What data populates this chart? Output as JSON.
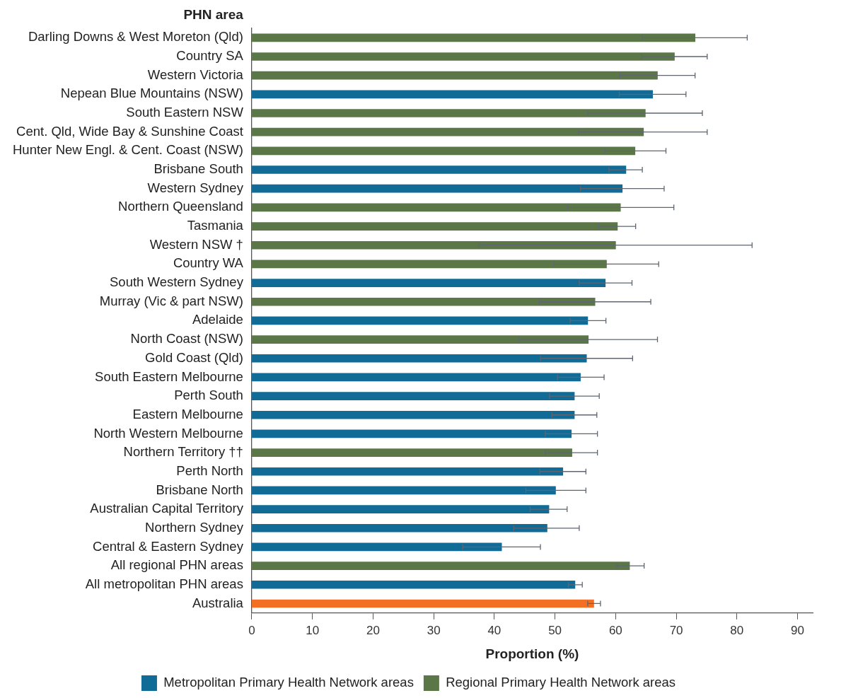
{
  "chart_data": {
    "type": "bar",
    "orientation": "horizontal",
    "ylabel": "PHN area",
    "xlabel": "Proportion (%)",
    "categories": [
      "Darling Downs & West Moreton (Qld)",
      "Country SA",
      "Western Victoria",
      "Nepean Blue Mountains (NSW)",
      "South Eastern NSW",
      "Cent. Qld, Wide Bay & Sunshine Coast",
      "Hunter New Engl. & Cent. Coast (NSW)",
      "Brisbane South",
      "Western Sydney",
      "Northern Queensland",
      "Tasmania",
      "Western NSW †",
      "Country WA",
      "South Western Sydney",
      "Murray (Vic & part NSW)",
      "Adelaide",
      "North Coast (NSW)",
      "Gold Coast (Qld)",
      "South Eastern Melbourne",
      "Perth South",
      "Eastern Melbourne",
      "North Western Melbourne",
      "Northern Territory ††",
      "Perth North",
      "Brisbane North",
      "Australian Capital Territory",
      "Northern Sydney",
      "Central & Eastern Sydney",
      "All regional PHN areas",
      "All metropolitan PHN areas",
      "Australia"
    ],
    "series": [
      {
        "name": "Metropolitan Primary Health Network areas",
        "color": "#106b96",
        "values": [
          null,
          null,
          null,
          66.1,
          null,
          null,
          null,
          61.7,
          61.1,
          null,
          null,
          null,
          null,
          58.3,
          null,
          55.4,
          null,
          55.2,
          54.2,
          53.2,
          53.2,
          52.7,
          null,
          51.3,
          50.1,
          49.0,
          48.7,
          41.2,
          null,
          53.3,
          null
        ],
        "errors": [
          null,
          null,
          null,
          [
            60.6,
            71.6
          ],
          null,
          null,
          null,
          [
            58.9,
            64.4
          ],
          [
            54.2,
            68.0
          ],
          null,
          null,
          null,
          null,
          [
            54.0,
            62.7
          ],
          null,
          [
            52.5,
            58.4
          ],
          null,
          [
            47.6,
            62.8
          ],
          [
            50.4,
            58.1
          ],
          [
            49.1,
            57.3
          ],
          [
            49.5,
            56.9
          ],
          [
            48.4,
            57.0
          ],
          null,
          [
            47.5,
            55.1
          ],
          [
            45.2,
            55.1
          ],
          [
            45.9,
            52.0
          ],
          [
            43.2,
            54.0
          ],
          [
            34.8,
            47.6
          ],
          null,
          [
            52.2,
            54.5
          ],
          null
        ]
      },
      {
        "name": "Regional Primary Health Network areas",
        "color": "#5b7747",
        "values": [
          73.1,
          69.7,
          66.9,
          null,
          64.9,
          64.6,
          63.2,
          null,
          null,
          60.8,
          60.3,
          60.0,
          58.5,
          null,
          56.6,
          null,
          55.5,
          null,
          null,
          null,
          null,
          null,
          52.8,
          null,
          null,
          null,
          null,
          null,
          62.3,
          null,
          null
        ],
        "errors": [
          [
            64.4,
            81.7
          ],
          [
            64.3,
            75.1
          ],
          [
            60.7,
            73.1
          ],
          null,
          [
            55.4,
            74.3
          ],
          [
            53.9,
            75.1
          ],
          [
            58.2,
            68.3
          ],
          null,
          null,
          [
            52.1,
            69.6
          ],
          [
            57.2,
            63.3
          ],
          [
            37.5,
            82.5
          ],
          [
            49.8,
            67.1
          ],
          null,
          [
            47.4,
            65.8
          ],
          null,
          [
            44.1,
            66.9
          ],
          null,
          null,
          null,
          null,
          null,
          [
            48.4,
            57.0
          ],
          null,
          null,
          null,
          null,
          null,
          [
            60.2,
            64.7
          ],
          null,
          null
        ]
      },
      {
        "color": "#f36f21",
        "values": [
          null,
          null,
          null,
          null,
          null,
          null,
          null,
          null,
          null,
          null,
          null,
          null,
          null,
          null,
          null,
          null,
          null,
          null,
          null,
          null,
          null,
          null,
          null,
          null,
          null,
          null,
          null,
          null,
          null,
          null,
          56.4
        ],
        "errors": [
          null,
          null,
          null,
          null,
          null,
          null,
          null,
          null,
          null,
          null,
          null,
          null,
          null,
          null,
          null,
          null,
          null,
          null,
          null,
          null,
          null,
          null,
          null,
          null,
          null,
          null,
          null,
          null,
          null,
          null,
          [
            55.4,
            57.5
          ]
        ]
      }
    ],
    "xlim": [
      0,
      92.5
    ],
    "xticks": [
      0,
      10,
      20,
      30,
      40,
      50,
      60,
      70,
      80,
      90
    ],
    "grid": false,
    "legend": "bottom"
  }
}
